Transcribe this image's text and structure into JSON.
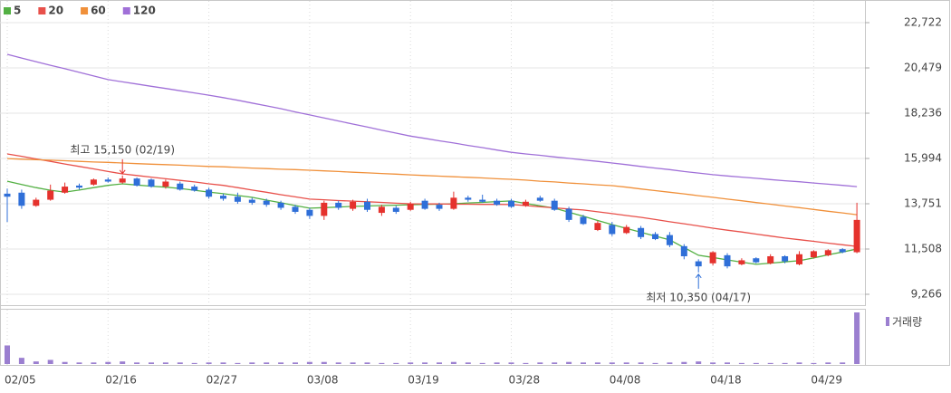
{
  "chart_data": {
    "type": "candlestick",
    "categories": [
      "02/05",
      null,
      null,
      null,
      null,
      null,
      null,
      "02/16",
      null,
      null,
      null,
      null,
      null,
      null,
      "02/27",
      null,
      null,
      null,
      null,
      null,
      null,
      "03/08",
      null,
      null,
      null,
      null,
      null,
      null,
      "03/19",
      null,
      null,
      null,
      null,
      null,
      null,
      "03/28",
      null,
      null,
      null,
      null,
      null,
      null,
      "04/08",
      null,
      null,
      null,
      null,
      null,
      null,
      "04/18",
      null,
      null,
      null,
      null,
      null,
      null,
      "04/29",
      null,
      null,
      null
    ],
    "open": [
      14250,
      14300,
      13650,
      13950,
      14300,
      14650,
      14700,
      14950,
      14800,
      15000,
      14950,
      14600,
      14750,
      14600,
      14450,
      14150,
      14100,
      13950,
      13900,
      13800,
      13600,
      13450,
      13150,
      13800,
      13500,
      13850,
      13300,
      13550,
      13450,
      13900,
      13700,
      13500,
      14050,
      13950,
      13900,
      13900,
      13650,
      14050,
      13900,
      13500,
      13100,
      12450,
      12700,
      12300,
      12550,
      12250,
      12200,
      11650,
      10900,
      10800,
      11200,
      10750,
      11050,
      10800,
      11150,
      10750,
      11100,
      11200,
      11500,
      11350
    ],
    "high": [
      14500,
      14450,
      14050,
      14700,
      14800,
      14750,
      15000,
      15050,
      15150,
      15050,
      15000,
      14950,
      14850,
      14700,
      14550,
      14250,
      14300,
      14050,
      14000,
      13900,
      13700,
      13550,
      13900,
      13900,
      13950,
      14000,
      13700,
      13650,
      13850,
      14000,
      13800,
      14350,
      14150,
      14200,
      14000,
      14000,
      13950,
      14150,
      14000,
      13600,
      13200,
      12900,
      12850,
      12700,
      12650,
      12350,
      12350,
      11750,
      11000,
      11400,
      11300,
      11050,
      11100,
      11250,
      11200,
      11400,
      11450,
      11500,
      11550,
      13800
    ],
    "low": [
      12850,
      13500,
      13600,
      13900,
      14250,
      14450,
      14650,
      14800,
      14750,
      14600,
      14550,
      14500,
      14400,
      14350,
      14000,
      13900,
      13750,
      13700,
      13600,
      13450,
      13250,
      13000,
      12950,
      13450,
      13400,
      13350,
      13150,
      13250,
      13400,
      13450,
      13400,
      13450,
      13850,
      13800,
      13650,
      13550,
      13600,
      13850,
      13400,
      12850,
      12700,
      12400,
      12150,
      12250,
      12000,
      11950,
      11600,
      11000,
      10350,
      10700,
      10550,
      10700,
      10800,
      10750,
      10800,
      10700,
      11050,
      11150,
      11300,
      11300
    ],
    "close": [
      14100,
      13650,
      13950,
      14400,
      14600,
      14550,
      14950,
      14850,
      15000,
      14650,
      14600,
      14850,
      14450,
      14400,
      14100,
      14000,
      13850,
      13800,
      13700,
      13550,
      13350,
      13150,
      13800,
      13550,
      13850,
      13450,
      13600,
      13350,
      13750,
      13500,
      13500,
      14050,
      13950,
      13850,
      13700,
      13600,
      13850,
      13900,
      13450,
      12950,
      12750,
      12800,
      12250,
      12600,
      12100,
      12000,
      11700,
      11150,
      10650,
      11350,
      10650,
      10950,
      10850,
      11150,
      10900,
      11250,
      11400,
      11450,
      11350,
      12950
    ],
    "up_color": "#e5322d",
    "down_color": "#2f6fd8",
    "moving_averages": [
      {
        "name": "5",
        "color": "#53b043",
        "values": [
          14870,
          14700,
          14550,
          14420,
          14330,
          14430,
          14550,
          14660,
          14740,
          14680,
          14620,
          14570,
          14510,
          14420,
          14330,
          14250,
          14160,
          14070,
          13930,
          13800,
          13660,
          13530,
          13560,
          13590,
          13620,
          13640,
          13660,
          13680,
          13700,
          13720,
          13730,
          13750,
          13790,
          13820,
          13860,
          13890,
          13770,
          13650,
          13530,
          13330,
          13130,
          12920,
          12720,
          12530,
          12340,
          12150,
          11960,
          11580,
          11200,
          11090,
          10970,
          10860,
          10750,
          10810,
          10870,
          10930,
          11070,
          11220,
          11360,
          11510
        ]
      },
      {
        "name": "20",
        "color": "#e8504a",
        "values": [
          16220,
          16100,
          15970,
          15850,
          15720,
          15600,
          15480,
          15350,
          15230,
          15150,
          15070,
          14990,
          14910,
          14830,
          14740,
          14660,
          14550,
          14430,
          14320,
          14200,
          14090,
          13980,
          13950,
          13910,
          13880,
          13850,
          13820,
          13780,
          13750,
          13740,
          13740,
          13730,
          13730,
          13720,
          13720,
          13710,
          13660,
          13600,
          13550,
          13490,
          13440,
          13350,
          13260,
          13170,
          13080,
          12970,
          12860,
          12760,
          12650,
          12540,
          12440,
          12350,
          12250,
          12150,
          12050,
          11970,
          11890,
          11800,
          11720,
          11640
        ]
      },
      {
        "name": "60",
        "color": "#f0903a",
        "values": [
          15990,
          15960,
          15930,
          15910,
          15880,
          15850,
          15820,
          15800,
          15770,
          15740,
          15710,
          15690,
          15660,
          15630,
          15600,
          15580,
          15550,
          15520,
          15490,
          15460,
          15440,
          15410,
          15380,
          15350,
          15310,
          15280,
          15250,
          15220,
          15180,
          15150,
          15120,
          15090,
          15060,
          15030,
          14990,
          14960,
          14920,
          14870,
          14830,
          14780,
          14740,
          14690,
          14650,
          14570,
          14480,
          14400,
          14320,
          14240,
          14150,
          14070,
          13980,
          13900,
          13810,
          13730,
          13640,
          13560,
          13470,
          13380,
          13300,
          13210
        ]
      },
      {
        "name": "120",
        "color": "#a070d8",
        "values": [
          21150,
          20970,
          20790,
          20610,
          20440,
          20260,
          20080,
          19900,
          19790,
          19680,
          19570,
          19460,
          19350,
          19240,
          19130,
          19010,
          18880,
          18740,
          18600,
          18460,
          18300,
          18150,
          18000,
          17850,
          17700,
          17550,
          17400,
          17250,
          17100,
          16990,
          16870,
          16760,
          16640,
          16530,
          16410,
          16300,
          16220,
          16150,
          16070,
          16000,
          15920,
          15850,
          15770,
          15690,
          15600,
          15520,
          15440,
          15350,
          15270,
          15190,
          15130,
          15070,
          15010,
          14950,
          14890,
          14840,
          14780,
          14720,
          14660,
          14600
        ]
      }
    ],
    "volume": {
      "name": "거래량",
      "color": "#9b7fd0",
      "values": [
        36,
        12,
        5,
        8,
        4,
        3,
        3,
        4,
        5,
        3,
        3,
        3,
        3,
        2,
        3,
        3,
        2,
        3,
        3,
        3,
        3,
        4,
        4,
        3,
        3,
        3,
        2,
        2,
        3,
        3,
        3,
        4,
        3,
        2,
        3,
        3,
        2,
        3,
        3,
        4,
        3,
        3,
        3,
        3,
        3,
        2,
        3,
        4,
        5,
        3,
        3,
        2,
        2,
        2,
        2,
        3,
        2,
        3,
        3,
        100
      ]
    },
    "ylim": [
      8817,
      23395
    ],
    "yticks": [
      {
        "value": 22722,
        "label": "22,722"
      },
      {
        "value": 20479,
        "label": "20,479"
      },
      {
        "value": 18236,
        "label": "18,236"
      },
      {
        "value": 15994,
        "label": "15,994"
      },
      {
        "value": 13751,
        "label": "13,751"
      },
      {
        "value": 11508,
        "label": "11,508"
      },
      {
        "value": 9266,
        "label": "9,266"
      }
    ],
    "grid": true,
    "annotations": {
      "high": "최고 15,150 (02/19)",
      "low": "최저 10,350 (04/17)"
    }
  }
}
